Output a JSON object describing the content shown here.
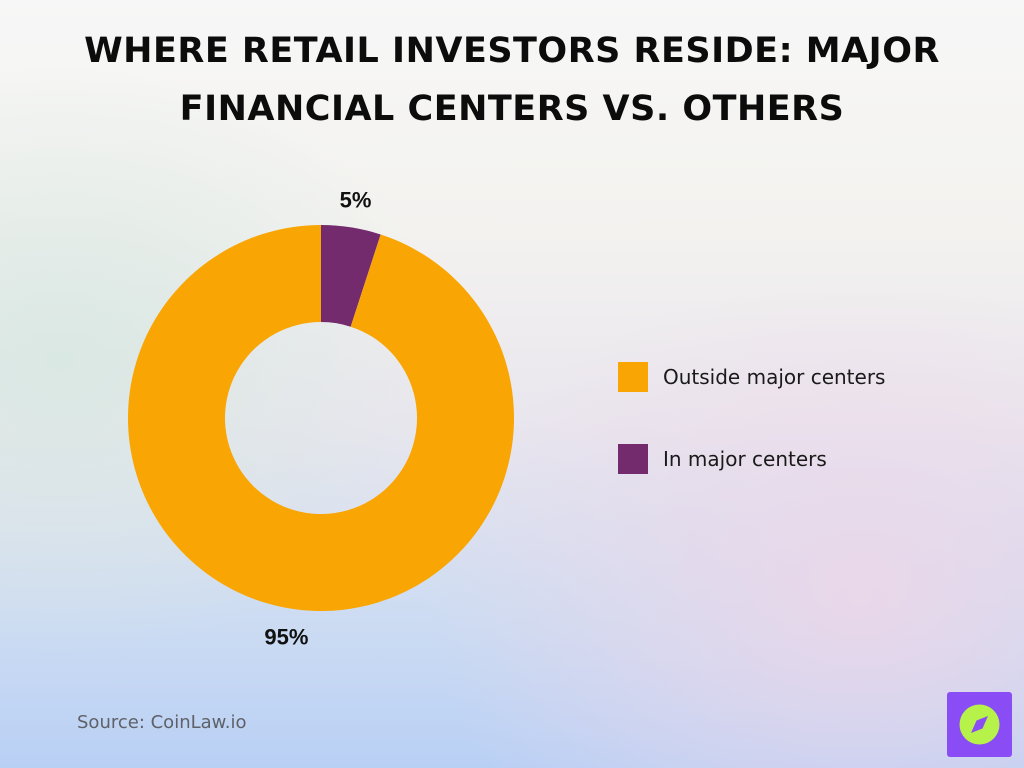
{
  "title": "Where Retail Investors Reside: Major Financial Centers vs. Others",
  "source": "Source: CoinLaw.io",
  "logo_icon": "compass-icon",
  "colors": {
    "outside": "#f9a503",
    "inside": "#732b6d",
    "logo_bg": "#8a4cf4",
    "logo_circle": "#b6f24a"
  },
  "chart_data": {
    "type": "pie",
    "variant": "donut",
    "title": "Where Retail Investors Reside: Major Financial Centers vs. Others",
    "legend_position": "right",
    "slices": [
      {
        "name": "In major centers",
        "value": 5,
        "label": "5%",
        "color": "#732b6d"
      },
      {
        "name": "Outside major centers",
        "value": 95,
        "label": "95%",
        "color": "#f9a503"
      }
    ],
    "legend": [
      {
        "name": "Outside major centers",
        "color": "#f9a503"
      },
      {
        "name": "In major centers",
        "color": "#732b6d"
      }
    ]
  }
}
